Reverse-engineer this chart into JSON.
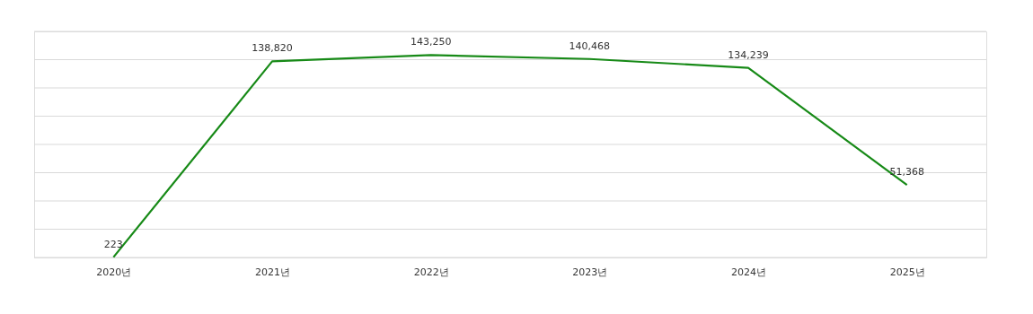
{
  "chart_data": {
    "type": "line",
    "categories": [
      "2020년",
      "2021년",
      "2022년",
      "2023년",
      "2024년",
      "2025년"
    ],
    "series": [
      {
        "color": "#178a17",
        "values": [
          223,
          138820,
          143250,
          140468,
          134239,
          51368
        ],
        "value_labels": [
          "223",
          "138,820",
          "143,250",
          "140,468",
          "134,239",
          "51,368"
        ]
      }
    ],
    "ylim": [
      0,
      160000
    ],
    "yticks": [
      {
        "value": 0,
        "label": null
      },
      {
        "value": 20000,
        "label": null
      },
      {
        "value": 40000,
        "label": null
      },
      {
        "value": 60000,
        "label": null
      },
      {
        "value": 80000,
        "label": null
      },
      {
        "value": 100000,
        "label": null
      },
      {
        "value": 120000,
        "label": null
      },
      {
        "value": 140000,
        "label": null
      },
      {
        "value": 160000,
        "label": null
      }
    ],
    "tick_labels": "x",
    "grid": "y",
    "marker": "none",
    "line_style": "solid"
  }
}
